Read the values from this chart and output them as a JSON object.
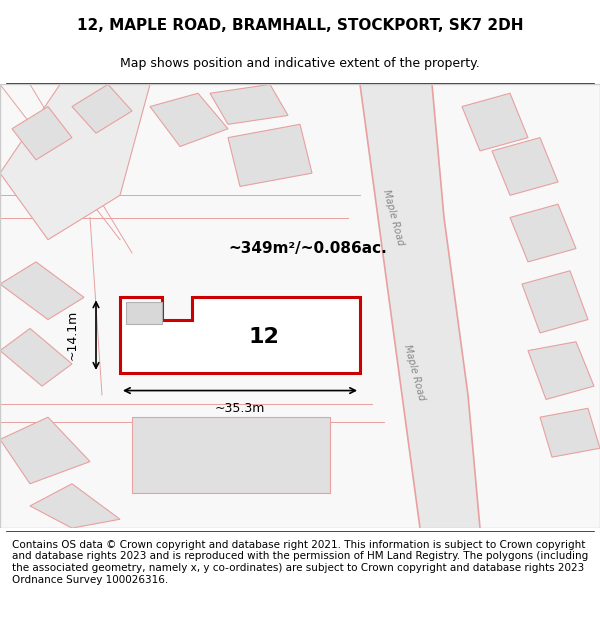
{
  "title": "12, MAPLE ROAD, BRAMHALL, STOCKPORT, SK7 2DH",
  "subtitle": "Map shows position and indicative extent of the property.",
  "footer": "Contains OS data © Crown copyright and database right 2021. This information is subject to Crown copyright and database rights 2023 and is reproduced with the permission of HM Land Registry. The polygons (including the associated geometry, namely x, y co-ordinates) are subject to Crown copyright and database rights 2023 Ordnance Survey 100026316.",
  "bg_color": "#f5f5f5",
  "map_bg": "#f0f0f0",
  "title_fontsize": 11,
  "subtitle_fontsize": 9,
  "footer_fontsize": 7.5,
  "highlight_color": "#cc0000",
  "road_color": "#f5b8b8",
  "building_color": "#e0e0e0",
  "road_line_color": "#e8a0a0",
  "maple_road_label": "Maple Road",
  "area_label": "~349m²/~0.086ac.",
  "width_label": "~35.3m",
  "height_label": "~14.1m",
  "plot_number": "12",
  "highlight_lw": 2.2,
  "road_lw": 0.8,
  "building_lw": 0.8,
  "figsize": [
    6.0,
    6.25
  ],
  "dpi": 100
}
